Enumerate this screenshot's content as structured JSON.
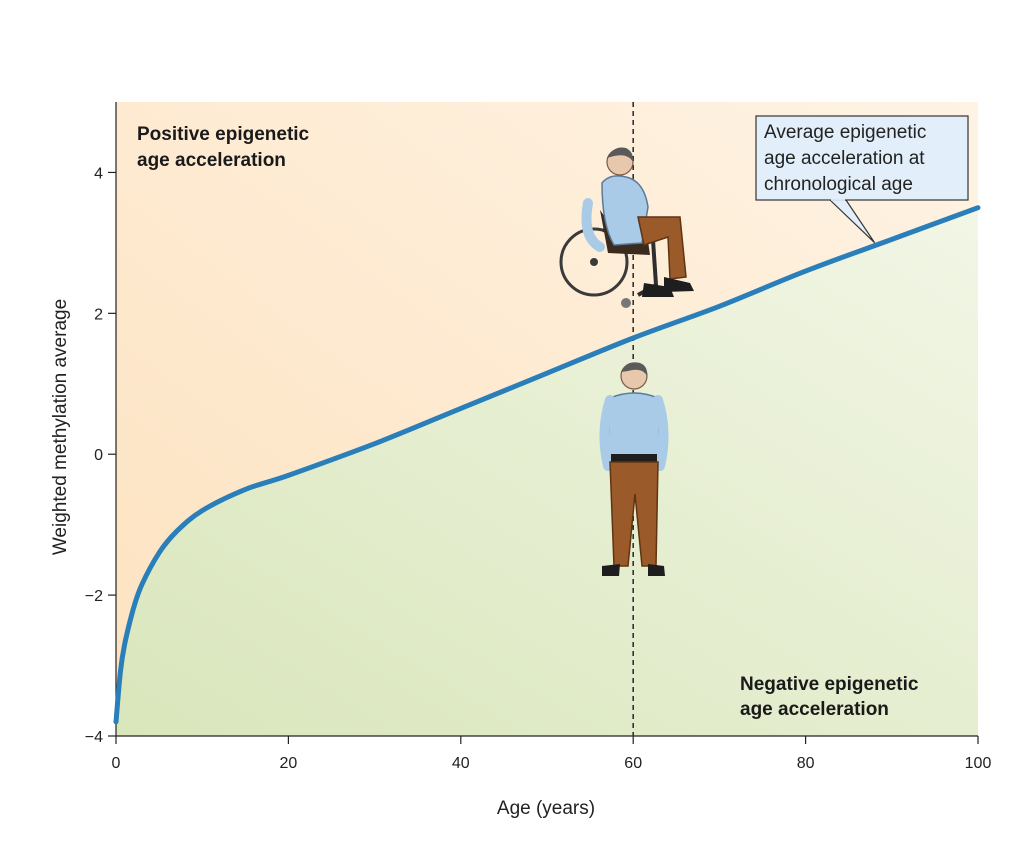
{
  "chart_data": {
    "type": "line",
    "title": "",
    "xlabel": "Age (years)",
    "ylabel": "Weighted methylation average",
    "xlim": [
      0,
      100
    ],
    "ylim": [
      -4,
      5
    ],
    "x_ticks": [
      0,
      20,
      40,
      60,
      80,
      100
    ],
    "x_tick_labels": [
      "0",
      "20",
      "40",
      "60",
      "80",
      "100"
    ],
    "y_ticks": [
      -4,
      -2,
      0,
      2,
      4
    ],
    "y_tick_labels": [
      "−4",
      "−2",
      "0",
      "2",
      "4"
    ],
    "grid": false,
    "reference_line": {
      "x": 60,
      "style": "dashed"
    },
    "series": [
      {
        "color": "#2a7fba",
        "x": [
          0,
          0.5,
          1,
          2,
          3,
          5,
          7,
          10,
          15,
          20,
          30,
          40,
          50,
          60,
          70,
          80,
          90,
          100
        ],
        "y": [
          -3.8,
          -3.1,
          -2.7,
          -2.2,
          -1.85,
          -1.4,
          -1.1,
          -0.8,
          -0.5,
          -0.3,
          0.15,
          0.65,
          1.15,
          1.65,
          2.1,
          2.6,
          3.05,
          3.5
        ]
      }
    ],
    "regions": {
      "above": {
        "label_line1": "Positive epigenetic",
        "label_line2": "age acceleration",
        "color": "#fde7c8"
      },
      "below": {
        "label_line1": "Negative epigenetic",
        "label_line2": "age acceleration",
        "color": "#e6edcf"
      }
    },
    "callout": {
      "lines": [
        "Average epigenetic",
        "age acceleration at",
        "chronological age"
      ],
      "points_to_x": 88
    }
  },
  "illustrations": [
    "person-in-wheelchair",
    "standing-person"
  ]
}
